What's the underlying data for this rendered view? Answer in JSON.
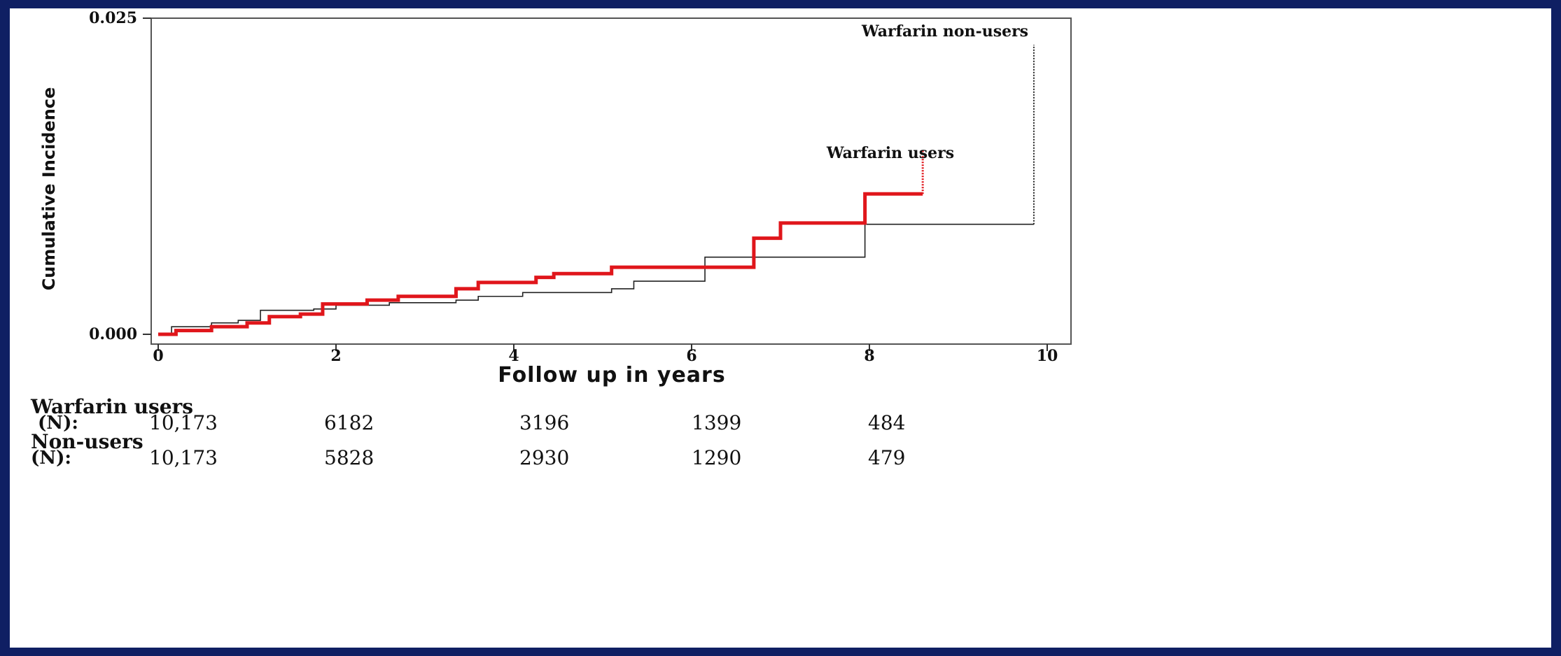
{
  "chart_data": {
    "type": "line",
    "step": true,
    "title": "",
    "xlabel": "Follow up in years",
    "ylabel": "Cumulative Incidence",
    "xlim": [
      0,
      10
    ],
    "ylim": [
      0,
      0.025
    ],
    "xticks": [
      "0",
      "2",
      "4",
      "6",
      "8",
      "10"
    ],
    "yticks": [
      "0.000",
      "0.025"
    ],
    "grid": false,
    "series": [
      {
        "name": "Warfarin non-users",
        "color": "#222222",
        "style": "thin",
        "points": [
          [
            0,
            0
          ],
          [
            0.15,
            0.0006
          ],
          [
            0.6,
            0.0009
          ],
          [
            0.9,
            0.0011
          ],
          [
            1.15,
            0.0019
          ],
          [
            1.75,
            0.002
          ],
          [
            2.0,
            0.0023
          ],
          [
            2.6,
            0.0025
          ],
          [
            3.35,
            0.0027
          ],
          [
            3.6,
            0.003
          ],
          [
            4.1,
            0.0033
          ],
          [
            5.1,
            0.0036
          ],
          [
            5.35,
            0.0042
          ],
          [
            6.15,
            0.0061
          ],
          [
            7.95,
            0.0087
          ],
          [
            9.85,
            0.0087
          ]
        ],
        "final_rise": [
          9.85,
          0.0087,
          0.0229
        ]
      },
      {
        "name": "Warfarin users",
        "color": "#e0161b",
        "style": "thick",
        "points": [
          [
            0,
            0
          ],
          [
            0.2,
            0.0003
          ],
          [
            0.6,
            0.0006
          ],
          [
            1.0,
            0.0009
          ],
          [
            1.25,
            0.0014
          ],
          [
            1.6,
            0.0016
          ],
          [
            1.85,
            0.0024
          ],
          [
            2.35,
            0.0027
          ],
          [
            2.7,
            0.003
          ],
          [
            3.35,
            0.0036
          ],
          [
            3.6,
            0.0041
          ],
          [
            4.25,
            0.0045
          ],
          [
            4.45,
            0.0048
          ],
          [
            5.1,
            0.0053
          ],
          [
            6.7,
            0.0076
          ],
          [
            7.0,
            0.0088
          ],
          [
            7.95,
            0.0111
          ],
          [
            8.6,
            0.0111
          ]
        ],
        "final_rise": [
          8.6,
          0.0111,
          0.0146
        ]
      }
    ]
  },
  "risk_table": {
    "rows": [
      {
        "group": "Warfarin users",
        "n_label": "(N):",
        "values": [
          "10,173",
          "6182",
          "3196",
          "1399",
          "484"
        ]
      },
      {
        "group": "Non-users",
        "n_label": "(N):",
        "values": [
          "10,173",
          "5828",
          "2930",
          "1290",
          "479"
        ]
      }
    ]
  }
}
